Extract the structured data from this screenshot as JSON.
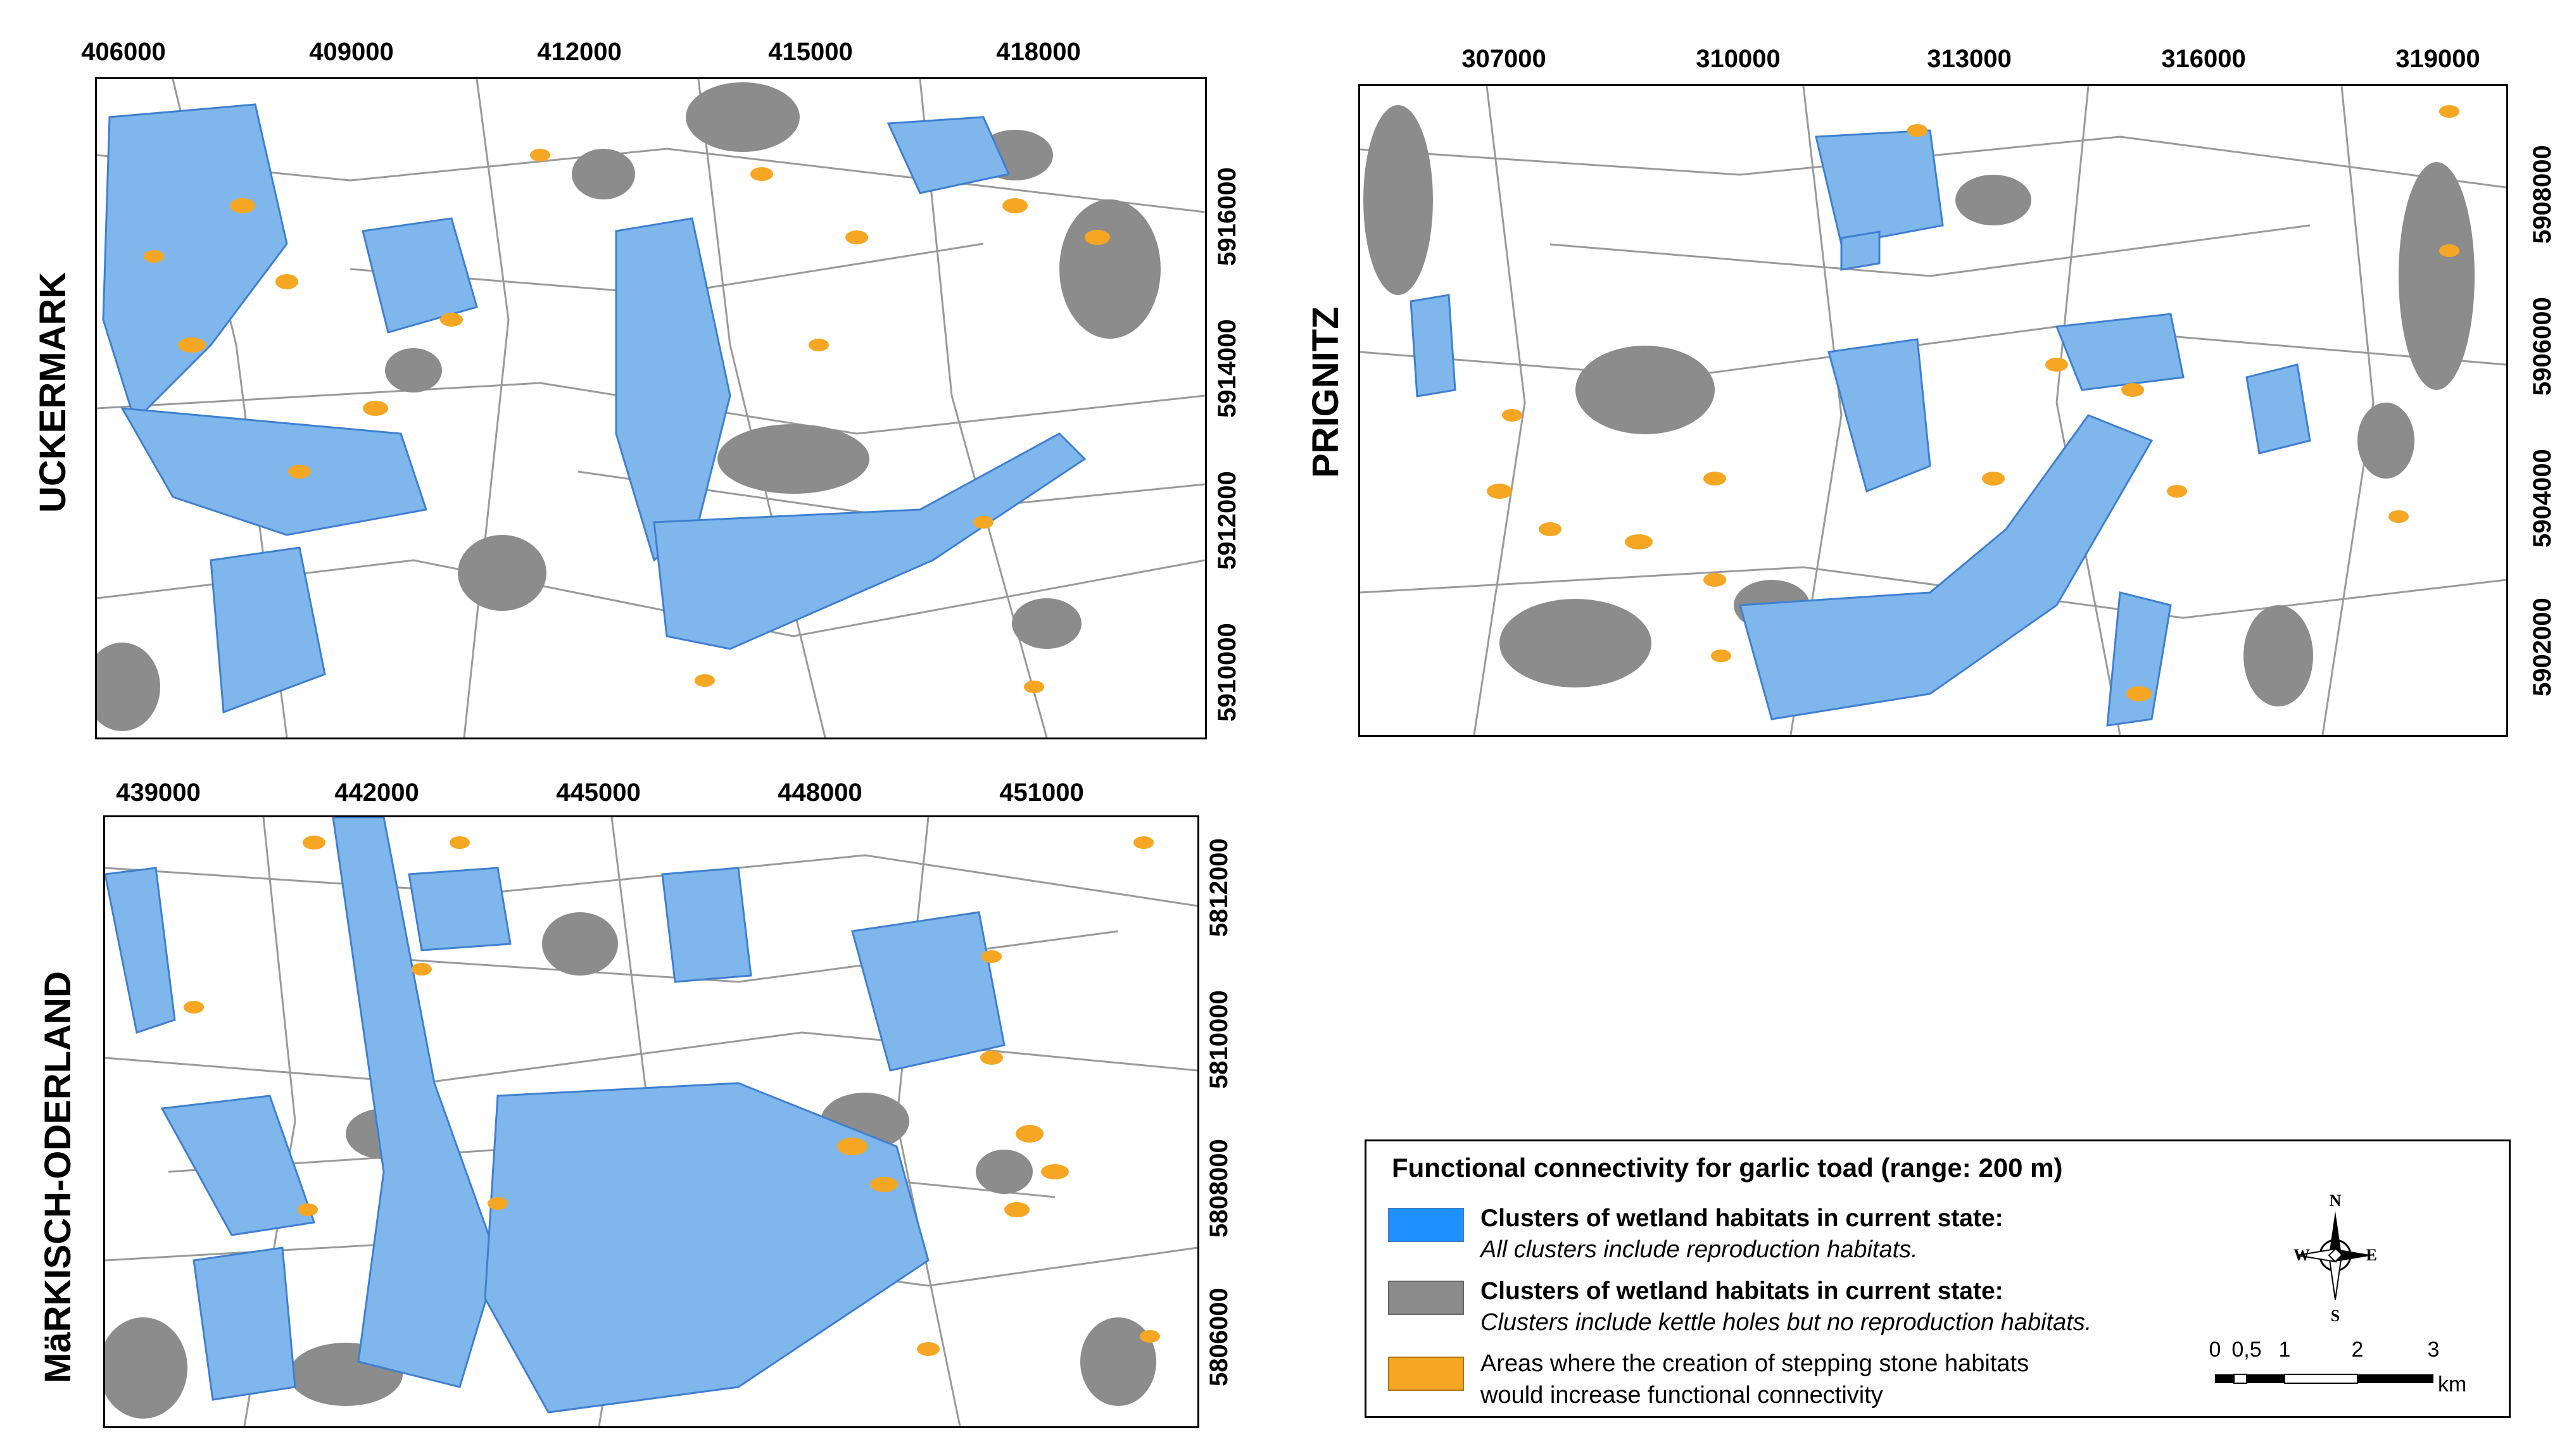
{
  "colors": {
    "blue_cluster": "#7fb7ec",
    "blue_edge": "#3f7fd0",
    "grey_cluster": "#8c8c8c",
    "orange_stone": "#f5a623",
    "road": "#9a9a9a"
  },
  "maps": {
    "uckermark": {
      "name": "UCKERMARK",
      "x_ticks": [
        "406000",
        "409000",
        "412000",
        "415000",
        "418000"
      ],
      "y_ticks": [
        "5916000",
        "5914000",
        "5912000",
        "5910000"
      ]
    },
    "prignitz": {
      "name": "PRIGNITZ",
      "x_ticks": [
        "307000",
        "310000",
        "313000",
        "316000",
        "319000"
      ],
      "y_ticks": [
        "5908000",
        "5906000",
        "5904000",
        "5902000"
      ]
    },
    "maerkisch_oderland": {
      "name": "MäRKISCH-ODERLAND",
      "x_ticks": [
        "439000",
        "442000",
        "445000",
        "448000",
        "451000"
      ],
      "y_ticks": [
        "5812000",
        "5810000",
        "5808000",
        "5806000"
      ]
    }
  },
  "legend": {
    "title": "Functional connectivity for garlic toad (range: 200 m)",
    "blue_title": "Clusters of wetland habitats in current state:",
    "blue_note": "All clusters include reproduction habitats.",
    "grey_title": "Clusters of wetland habitats in current state:",
    "grey_note": "Clusters include kettle holes but no reproduction habitats.",
    "orange_line1": "Areas where the creation of stepping stone habitats",
    "orange_line2": "would  increase functional connectivity"
  },
  "north_arrow": {
    "n": "N",
    "s": "S",
    "e": "E",
    "w": "W"
  },
  "scale_bar": {
    "labels": [
      "0",
      "0,5",
      "1",
      "2",
      "3"
    ],
    "unit": "km"
  }
}
